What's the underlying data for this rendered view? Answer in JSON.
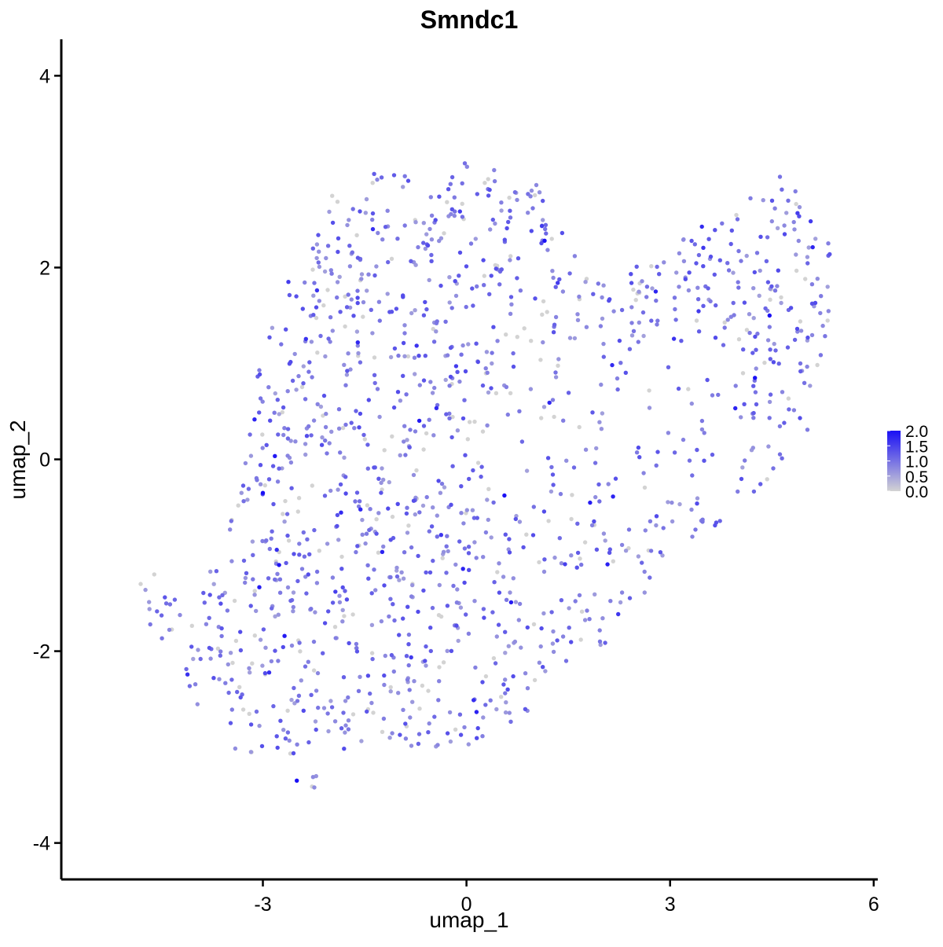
{
  "chart_data": {
    "type": "scatter",
    "title": "Smndc1",
    "xlabel": "umap_1",
    "ylabel": "umap_2",
    "xlim": [
      -5.97,
      6.06
    ],
    "ylim": [
      -4.38,
      4.38
    ],
    "xticks": [
      -3,
      0,
      3,
      6
    ],
    "yticks": [
      -4,
      -2,
      0,
      2,
      4
    ],
    "xtick_labels": [
      "-3",
      "0",
      "3",
      "6"
    ],
    "ytick_labels": [
      "-4",
      "-2",
      "0",
      "2",
      "4"
    ],
    "grid": false,
    "point_count": 1450,
    "color_scale": {
      "low": "#d3d3d3",
      "high": "#1a10f5",
      "min": 0.0,
      "max": 2.0,
      "legend_ticks": [
        2.0,
        1.5,
        1.0,
        0.5,
        0.0
      ],
      "legend_labels": [
        "2.0",
        "1.5",
        "1.0",
        "0.5",
        "0.0"
      ],
      "legend_position": "right"
    },
    "cluster_shape": [
      [
        -4.75,
        -1.25
      ],
      [
        -4.2,
        -1.5
      ],
      [
        -3.8,
        -1.1
      ],
      [
        -3.3,
        -0.2
      ],
      [
        -3.05,
        1.0
      ],
      [
        -2.6,
        1.9
      ],
      [
        -2.2,
        2.65
      ],
      [
        -1.5,
        3.0
      ],
      [
        -0.5,
        3.0
      ],
      [
        0.2,
        3.15
      ],
      [
        1.05,
        2.9
      ],
      [
        1.4,
        2.5
      ],
      [
        1.5,
        2.2
      ],
      [
        2.0,
        1.9
      ],
      [
        3.0,
        2.2
      ],
      [
        3.5,
        2.5
      ],
      [
        4.1,
        2.65
      ],
      [
        4.55,
        3.05
      ],
      [
        5.0,
        2.7
      ],
      [
        5.4,
        2.2
      ],
      [
        5.35,
        1.5
      ],
      [
        5.2,
        0.6
      ],
      [
        4.8,
        -0.1
      ],
      [
        4.2,
        -0.5
      ],
      [
        3.9,
        -0.6
      ],
      [
        3.4,
        -0.8
      ],
      [
        2.8,
        -1.3
      ],
      [
        2.2,
        -1.95
      ],
      [
        1.2,
        -2.2
      ],
      [
        0.9,
        -2.7
      ],
      [
        0.4,
        -3.0
      ],
      [
        -0.2,
        -3.1
      ],
      [
        -1.3,
        -2.9
      ],
      [
        -2.0,
        -3.15
      ],
      [
        -2.25,
        -3.5
      ],
      [
        -2.9,
        -3.1
      ],
      [
        -3.5,
        -3.0
      ],
      [
        -4.2,
        -2.4
      ],
      [
        -4.6,
        -1.9
      ],
      [
        -4.8,
        -1.4
      ]
    ],
    "low_expression_region": {
      "x_range": [
        0.4,
        4.2
      ],
      "y_range": [
        -0.6,
        1.2
      ]
    },
    "labeled_points": [
      {
        "x": -3.0,
        "y": -0.35,
        "value": 2.0
      },
      {
        "x": -2.5,
        "y": -3.35,
        "value": 2.0
      },
      {
        "x": 4.25,
        "y": 0.85,
        "value": 2.0
      },
      {
        "x": -4.8,
        "y": -1.3,
        "value": 0.0
      },
      {
        "x": -4.6,
        "y": -1.2,
        "value": 0.0
      }
    ]
  }
}
